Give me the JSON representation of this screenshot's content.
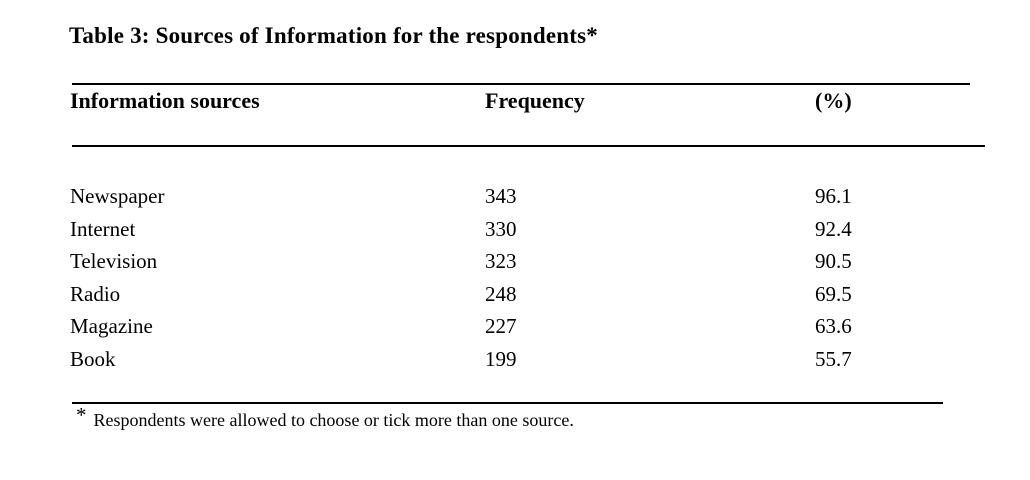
{
  "page": {
    "background": "#ffffff",
    "text_color": "#000000"
  },
  "table": {
    "title": "Table 3: Sources of Information for the respondents*",
    "columns": {
      "source": "Information sources",
      "frequency": "Frequency",
      "percent": "(%)"
    },
    "rows": [
      {
        "source": "Newspaper",
        "frequency": "343",
        "percent": "96.1"
      },
      {
        "source": "Internet",
        "frequency": "330",
        "percent": "92.4"
      },
      {
        "source": "Television",
        "frequency": "323",
        "percent": "90.5"
      },
      {
        "source": "Radio",
        "frequency": "248",
        "percent": "69.5"
      },
      {
        "source": "Magazine",
        "frequency": "227",
        "percent": "63.6"
      },
      {
        "source": "Book",
        "frequency": "199",
        "percent": "55.7"
      }
    ],
    "footnote": {
      "marker": "*",
      "text": "Respondents were allowed to choose or tick more than one source."
    }
  },
  "chart_data": {
    "type": "table",
    "title": "Table 3: Sources of Information for the respondents*",
    "columns": [
      "Information sources",
      "Frequency",
      "(%)"
    ],
    "rows": [
      [
        "Newspaper",
        343,
        96.1
      ],
      [
        "Internet",
        330,
        92.4
      ],
      [
        "Television",
        323,
        90.5
      ],
      [
        "Radio",
        248,
        69.5
      ],
      [
        "Magazine",
        227,
        63.6
      ],
      [
        "Book",
        199,
        55.7
      ]
    ],
    "footnote": "* Respondents were allowed to choose or tick more than one source."
  }
}
